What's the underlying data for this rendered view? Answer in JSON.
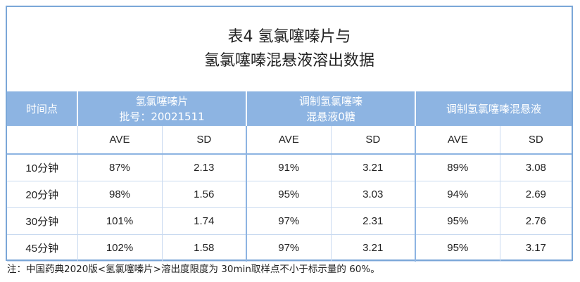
{
  "title": {
    "line1": "表4 氢氯噻嗪片与",
    "line2": "氢氯噻嗪混悬液溶出数据"
  },
  "header": {
    "time_col": "时间点",
    "group1_line1": "氢氯噻嗪片",
    "group1_line2": "批号：20021511",
    "group2_line1": "调制氢氯噻嗪",
    "group2_line2": "混悬液0糖",
    "group3": "调制氢氯噻嗪混悬液"
  },
  "subheader": [
    "AVE",
    "SD",
    "AVE",
    "SD",
    "AVE",
    "SD"
  ],
  "rows": [
    {
      "time": "10分钟",
      "cells": [
        "87%",
        "2.13",
        "91%",
        "3.21",
        "89%",
        "3.08"
      ]
    },
    {
      "time": "20分钟",
      "cells": [
        "98%",
        "1.56",
        "95%",
        "3.03",
        "94%",
        "2.69"
      ]
    },
    {
      "time": "30分钟",
      "cells": [
        "101%",
        "1.74",
        "97%",
        "2.31",
        "95%",
        "2.76"
      ]
    },
    {
      "time": "45分钟",
      "cells": [
        "102%",
        "1.58",
        "97%",
        "3.21",
        "95%",
        "3.17"
      ]
    }
  ],
  "note": "注：中国药典2020版<氢氯噻嗪片>溶出度限度为 30min取样点不小于标示量的 60%。",
  "colors": {
    "header_bg": "#8db4e2",
    "frame_border": "#7ba7d8"
  }
}
